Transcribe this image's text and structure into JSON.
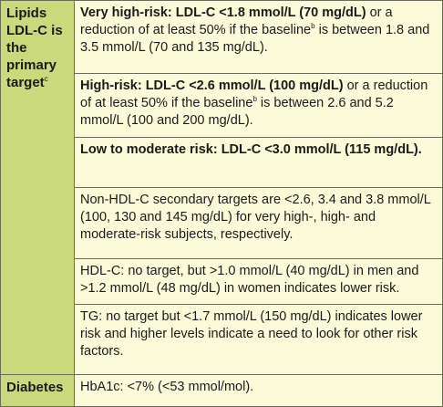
{
  "table": {
    "groups": [
      {
        "header": [
          {
            "text": "Lipids LDL-C is the primary target",
            "bold": true
          },
          {
            "sup": "c"
          }
        ],
        "cells": [
          [
            {
              "text": "Very high-risk: LDL-C <1.8 mmol/L (70 mg/dL)",
              "bold": true
            },
            {
              "text": " or a reduction of at least 50% if the baseline"
            },
            {
              "sup": "b"
            },
            {
              "text": " is between 1.8 and 3.5 mmol/L (70 and 135 mg/dL)."
            }
          ],
          [
            {
              "text": "High-risk: LDL-C <2.6 mmol/L (100 mg/dL)",
              "bold": true
            },
            {
              "text": " or a reduction of at least 50% if the baseline"
            },
            {
              "sup": "b"
            },
            {
              "text": " is between 2.6 and 5.2 mmol/L (100 and 200 mg/dL)."
            }
          ],
          [
            {
              "text": "Low to moderate risk: LDL-C <3.0 mmol/L (115 mg/dL).",
              "bold": true
            }
          ],
          [
            {
              "text": "Non-HDL-C secondary targets are <2.6, 3.4 and 3.8 mmol/L (100, 130 and 145 mg/dL) for very high-, high- and moderate-risk subjects, respectively."
            }
          ],
          [
            {
              "text": "HDL-C: no target, but >1.0 mmol/L (40 mg/dL) in men and >1.2 mmol/L (48 mg/dL) in women indicates lower risk."
            }
          ],
          [
            {
              "text": "TG: no target but <1.7 mmol/L (150 mg/dL) indicates lower risk and higher levels indicate a need to look for other risk factors."
            }
          ]
        ]
      },
      {
        "header": [
          {
            "text": "Diabetes",
            "bold": true
          }
        ],
        "cells": [
          [
            {
              "text": "HbA1c: <7% (<53 mmol/mol)."
            }
          ]
        ]
      }
    ]
  }
}
